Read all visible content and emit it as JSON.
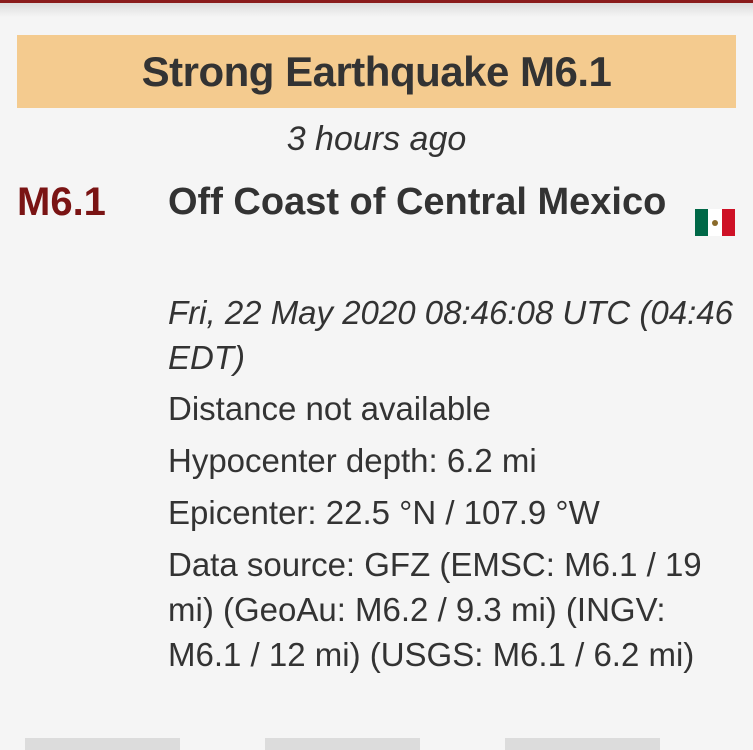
{
  "header": {
    "title": "Strong Earthquake M6.1"
  },
  "event": {
    "time_ago": "3 hours ago",
    "magnitude": "M6.1",
    "region": "Off Coast of Central Mexico",
    "flag_icon": "mexico-flag-icon",
    "datetime": "Fri, 22 May 2020 08:46:08 UTC (04:46 EDT)",
    "distance": "Distance not available",
    "depth": "Hypocenter depth: 6.2 mi",
    "epicenter": "Epicenter: 22.5 °N / 107.9 °W",
    "data_source": "Data source: GFZ (EMSC: M6.1 / 19 mi) (GeoAu: M6.2 / 9.3 mi) (INGV: M6.1 / 12 mi) (USGS: M6.1 / 6.2 mi)"
  },
  "colors": {
    "banner": "#f4cb8f",
    "magnitude": "#7a1414",
    "accent": "#8a1c1c"
  }
}
